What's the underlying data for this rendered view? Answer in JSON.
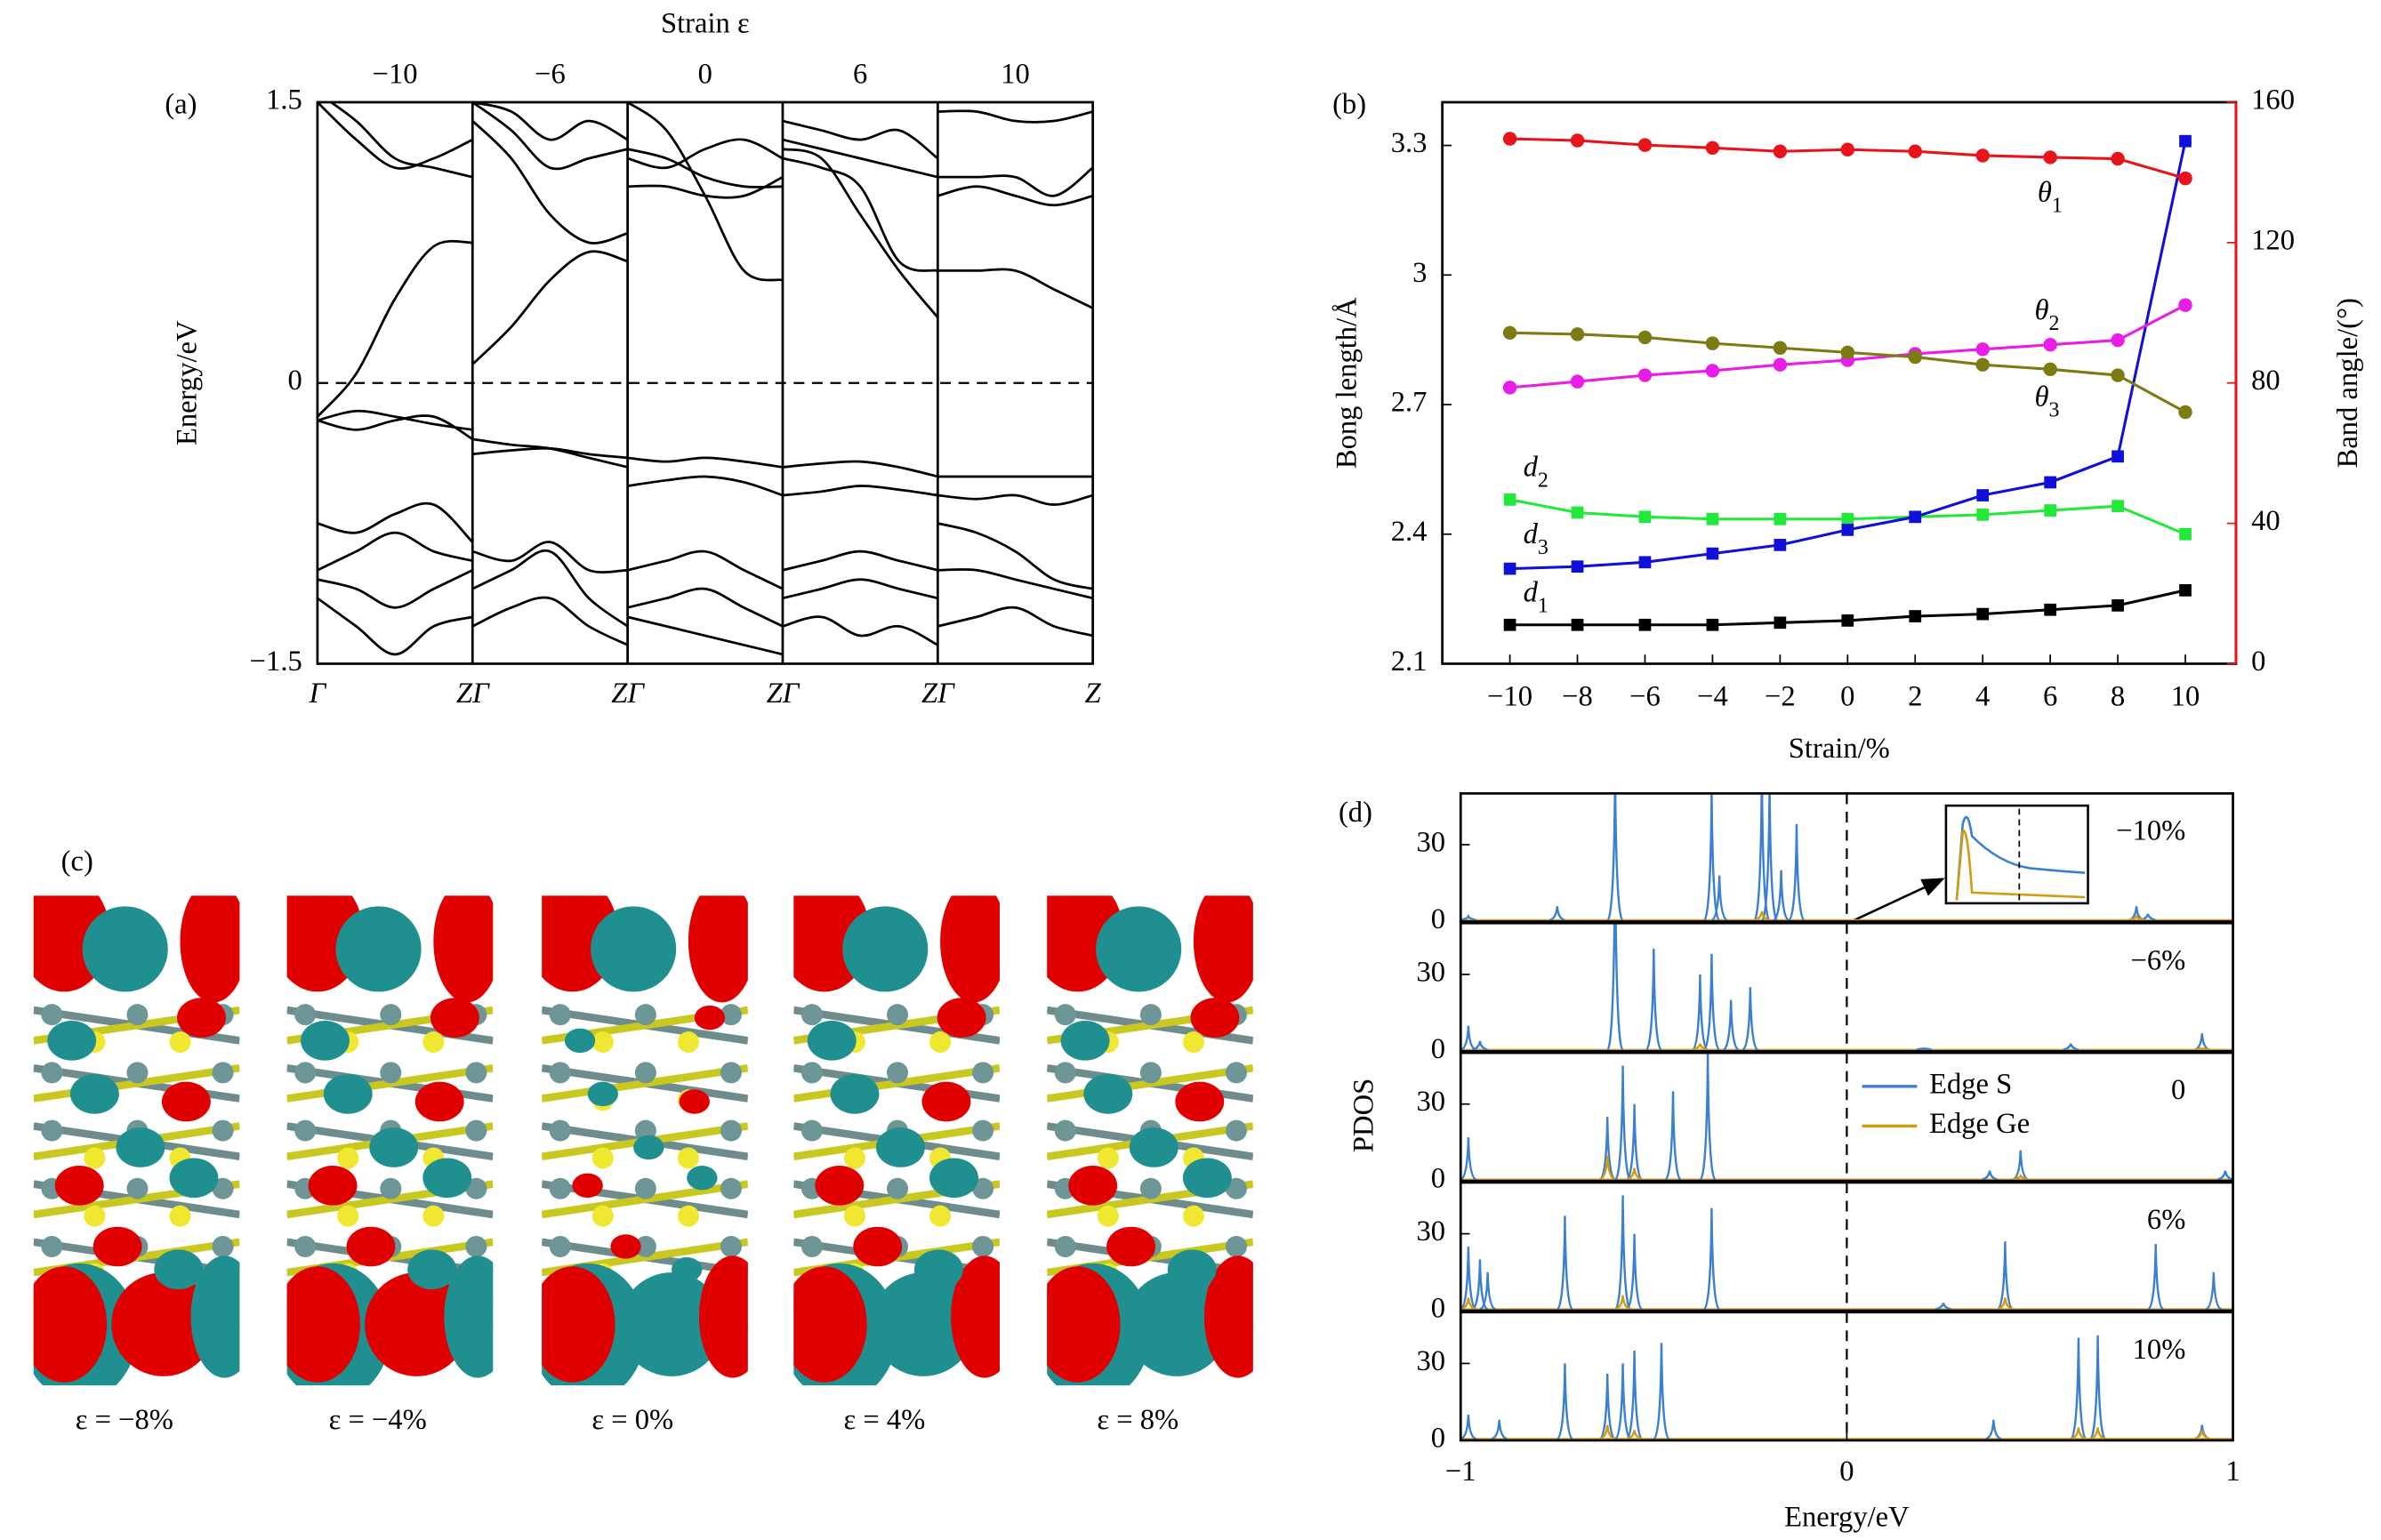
{
  "chart_data": [
    {
      "type": "band",
      "label": "(a)",
      "title": "Strain ε",
      "ylabel": "Energy/eV",
      "ylim": [
        -1.5,
        1.5
      ],
      "yticks": [
        {
          "value": -1.5,
          "label": "−1.5"
        },
        0,
        1.5
      ],
      "fermi": 0,
      "strains": [
        {
          "value": -10,
          "label": "−10"
        },
        {
          "value": -6,
          "label": "−6"
        },
        0,
        6,
        10
      ],
      "klabels": [
        "Γ",
        "ZΓ",
        "ZΓ",
        "ZΓ",
        "ZΓ",
        "Z"
      ],
      "panels": [
        {
          "bands": [
            [
              -0.18,
              0.05,
              0.45,
              0.73,
              0.75
            ],
            [
              1.55,
              1.4,
              1.2,
              1.15,
              1.1
            ],
            [
              1.5,
              1.3,
              1.15,
              1.2,
              1.3
            ],
            [
              -0.2,
              -0.15,
              -0.18,
              -0.22,
              -0.25
            ],
            [
              -0.2,
              -0.25,
              -0.2,
              -0.18,
              -0.3
            ],
            [
              -0.75,
              -0.8,
              -0.7,
              -0.65,
              -0.85
            ],
            [
              -1.0,
              -0.9,
              -0.8,
              -0.9,
              -0.95
            ],
            [
              -1.05,
              -1.1,
              -1.2,
              -1.1,
              -1.0
            ],
            [
              -1.15,
              -1.3,
              -1.45,
              -1.3,
              -1.25
            ]
          ]
        },
        {
          "bands": [
            [
              0.1,
              0.3,
              0.55,
              0.7,
              0.65
            ],
            [
              1.4,
              1.2,
              0.9,
              0.75,
              0.8
            ],
            [
              1.5,
              1.35,
              1.15,
              1.2,
              1.25
            ],
            [
              1.5,
              1.45,
              1.3,
              1.4,
              1.3
            ],
            [
              -0.3,
              -0.33,
              -0.35,
              -0.4,
              -0.45
            ],
            [
              -0.38,
              -0.36,
              -0.35,
              -0.38,
              -0.4
            ],
            [
              -0.9,
              -0.95,
              -0.85,
              -1.0,
              -1.0
            ],
            [
              -1.1,
              -1.0,
              -0.9,
              -1.15,
              -1.3
            ],
            [
              -1.3,
              -1.2,
              -1.15,
              -1.3,
              -1.4
            ]
          ]
        },
        {
          "bands": [
            [
              1.5,
              1.35,
              1.0,
              0.6,
              0.55
            ],
            [
              1.25,
              1.2,
              1.1,
              1.05,
              1.05
            ],
            [
              1.2,
              1.15,
              1.25,
              1.3,
              1.2
            ],
            [
              1.05,
              1.05,
              1.0,
              1.0,
              1.1
            ],
            [
              -0.4,
              -0.42,
              -0.4,
              -0.42,
              -0.45
            ],
            [
              -0.55,
              -0.52,
              -0.5,
              -0.53,
              -0.6
            ],
            [
              -1.0,
              -0.95,
              -0.9,
              -1.0,
              -1.1
            ],
            [
              -1.2,
              -1.15,
              -1.1,
              -1.2,
              -1.3
            ],
            [
              -1.25,
              -1.3,
              -1.35,
              -1.4,
              -1.45
            ]
          ]
        },
        {
          "bands": [
            [
              1.25,
              1.2,
              0.9,
              0.6,
              0.35
            ],
            [
              1.2,
              1.15,
              1.05,
              0.65,
              0.6
            ],
            [
              1.3,
              1.25,
              1.2,
              1.15,
              1.1
            ],
            [
              1.4,
              1.35,
              1.3,
              1.35,
              1.2
            ],
            [
              -0.45,
              -0.43,
              -0.42,
              -0.45,
              -0.5
            ],
            [
              -0.6,
              -0.58,
              -0.55,
              -0.57,
              -0.6
            ],
            [
              -1.0,
              -0.95,
              -0.9,
              -0.95,
              -1.0
            ],
            [
              -1.15,
              -1.1,
              -1.05,
              -1.1,
              -1.15
            ],
            [
              -1.3,
              -1.25,
              -1.35,
              -1.3,
              -1.4
            ]
          ]
        },
        {
          "bands": [
            [
              0.6,
              0.6,
              0.6,
              0.5,
              0.4
            ],
            [
              1.45,
              1.45,
              1.4,
              1.4,
              1.45
            ],
            [
              1.1,
              1.1,
              1.1,
              1.0,
              1.15
            ],
            [
              1.0,
              1.05,
              1.0,
              0.95,
              1.0
            ],
            [
              -0.5,
              -0.5,
              -0.5,
              -0.5,
              -0.5
            ],
            [
              -0.6,
              -0.62,
              -0.6,
              -0.65,
              -0.6
            ],
            [
              -0.75,
              -0.8,
              -0.9,
              -1.05,
              -1.1
            ],
            [
              -1.0,
              -1.0,
              -1.05,
              -1.1,
              -1.15
            ],
            [
              -1.3,
              -1.25,
              -1.2,
              -1.3,
              -1.35
            ]
          ]
        }
      ]
    },
    {
      "type": "line",
      "label": "(b)",
      "xlabel": "Strain/%",
      "ylabel": "Bong length/Å",
      "y2label": "Band angle/(°)",
      "x": [
        -10,
        -8,
        -6,
        -4,
        -2,
        0,
        2,
        4,
        6,
        8,
        10
      ],
      "xlim": [
        -12,
        11.5
      ],
      "xticks": [
        {
          "value": -10,
          "label": "−10"
        },
        {
          "value": -8,
          "label": "−8"
        },
        {
          "value": -6,
          "label": "−6"
        },
        {
          "value": -4,
          "label": "−4"
        },
        {
          "value": -2,
          "label": "−2"
        },
        0,
        2,
        4,
        6,
        8,
        10
      ],
      "ylim": [
        2.1,
        3.4
      ],
      "yticks": [
        2.1,
        2.4,
        2.7,
        3.0,
        3.3
      ],
      "y2lim": [
        0,
        160
      ],
      "y2ticks": [
        0,
        40,
        80,
        120,
        160
      ],
      "y2color": "#e8141b",
      "series": [
        {
          "name": "d1",
          "color": "#000000",
          "marker": "square",
          "values": [
            2.19,
            2.19,
            2.19,
            2.19,
            2.195,
            2.2,
            2.21,
            2.215,
            2.225,
            2.235,
            2.27
          ]
        },
        {
          "name": "d2",
          "color": "#22e83a",
          "marker": "square",
          "values": [
            2.48,
            2.45,
            2.44,
            2.435,
            2.435,
            2.435,
            2.44,
            2.445,
            2.455,
            2.465,
            2.4
          ]
        },
        {
          "name": "d3",
          "color": "#1010d8",
          "marker": "square",
          "values": [
            2.32,
            2.325,
            2.335,
            2.355,
            2.375,
            2.41,
            2.44,
            2.49,
            2.52,
            2.58,
            3.31
          ]
        },
        {
          "name": "θ1",
          "color": "#e8141b",
          "marker": "circle",
          "axis": "y2",
          "values": [
            149.6,
            149.1,
            147.8,
            147,
            146,
            146.5,
            146,
            144.8,
            144.3,
            143.9,
            138.3
          ]
        },
        {
          "name": "θ2",
          "color": "#e81ee8",
          "marker": "circle",
          "axis": "y2",
          "values": [
            78.7,
            80.4,
            82.2,
            83.5,
            85.2,
            86.5,
            88.3,
            89.6,
            90.9,
            92.2,
            102.2
          ]
        },
        {
          "name": "θ3",
          "color": "#7c7a12",
          "marker": "circle",
          "axis": "y2",
          "values": [
            94.3,
            93.9,
            93,
            91.3,
            90,
            88.7,
            87.4,
            85.2,
            83.9,
            82.2,
            71.7
          ]
        }
      ]
    },
    {
      "type": "spectrum",
      "label": "(d)",
      "xlabel": "Energy/eV",
      "ylabel": "PDOS",
      "xlim": [
        -1,
        1
      ],
      "xticks": [
        {
          "value": -1,
          "label": "−1"
        },
        0,
        1
      ],
      "ylim": [
        0,
        50
      ],
      "yticks": [
        0,
        30
      ],
      "fermi": 0,
      "series": [
        {
          "name": "Edge S",
          "color": "#3a7fd0"
        },
        {
          "name": "Edge Ge",
          "color": "#d49a10"
        }
      ],
      "panels": [
        {
          "label": "−10%",
          "peaks": [
            {
              "x": [
                -0.98,
                -0.75,
                -0.6,
                -0.35,
                -0.33,
                -0.22,
                -0.2,
                -0.17,
                -0.13,
                0.75,
                0.78
              ],
              "values": [
                2,
                6,
                60,
                52,
                18,
                60,
                55,
                20,
                38,
                6,
                3
              ]
            },
            {
              "x": [
                -0.22,
                0.75
              ],
              "values": [
                4,
                2
              ]
            }
          ]
        },
        {
          "label": "−6%",
          "peaks": [
            {
              "x": [
                -0.98,
                -0.95,
                -0.6,
                -0.5,
                -0.38,
                -0.35,
                -0.3,
                -0.25,
                0.2,
                0.58,
                0.92
              ],
              "values": [
                10,
                4,
                80,
                40,
                30,
                38,
                20,
                25,
                1,
                3,
                7
              ]
            },
            {
              "x": [
                -0.38,
                0.92
              ],
              "values": [
                3,
                1
              ]
            }
          ]
        },
        {
          "label": "0",
          "peaks": [
            {
              "x": [
                -0.98,
                -0.62,
                -0.58,
                -0.55,
                -0.45,
                -0.36,
                0.37,
                0.45,
                0.98
              ],
              "values": [
                17,
                25,
                45,
                30,
                35,
                50,
                4,
                12,
                4
              ]
            },
            {
              "x": [
                -0.62,
                -0.55,
                0.45
              ],
              "values": [
                10,
                5,
                2
              ]
            }
          ]
        },
        {
          "label": "6%",
          "peaks": [
            {
              "x": [
                -0.98,
                -0.95,
                -0.93,
                -0.73,
                -0.58,
                -0.55,
                -0.35,
                0.25,
                0.41,
                0.8,
                0.95
              ],
              "values": [
                25,
                20,
                15,
                37,
                45,
                30,
                40,
                3,
                27,
                26,
                15
              ]
            },
            {
              "x": [
                -0.98,
                -0.58,
                0.41
              ],
              "values": [
                5,
                6,
                5
              ]
            }
          ]
        },
        {
          "label": "10%",
          "peaks": [
            {
              "x": [
                -0.98,
                -0.9,
                -0.73,
                -0.62,
                -0.58,
                -0.55,
                -0.48,
                0.38,
                0.6,
                0.65,
                0.92
              ],
              "values": [
                10,
                8,
                30,
                26,
                30,
                35,
                38,
                8,
                40,
                41,
                6
              ]
            },
            {
              "x": [
                -0.62,
                -0.55,
                0.6,
                0.65,
                0.92
              ],
              "values": [
                6,
                4,
                5,
                5,
                4
              ]
            }
          ]
        }
      ]
    }
  ],
  "panel_c": {
    "label": "(c)",
    "captions": [
      "ε = −8%",
      "ε = −4%",
      "ε = 0%",
      "ε = 4%",
      "ε = 8%"
    ]
  }
}
